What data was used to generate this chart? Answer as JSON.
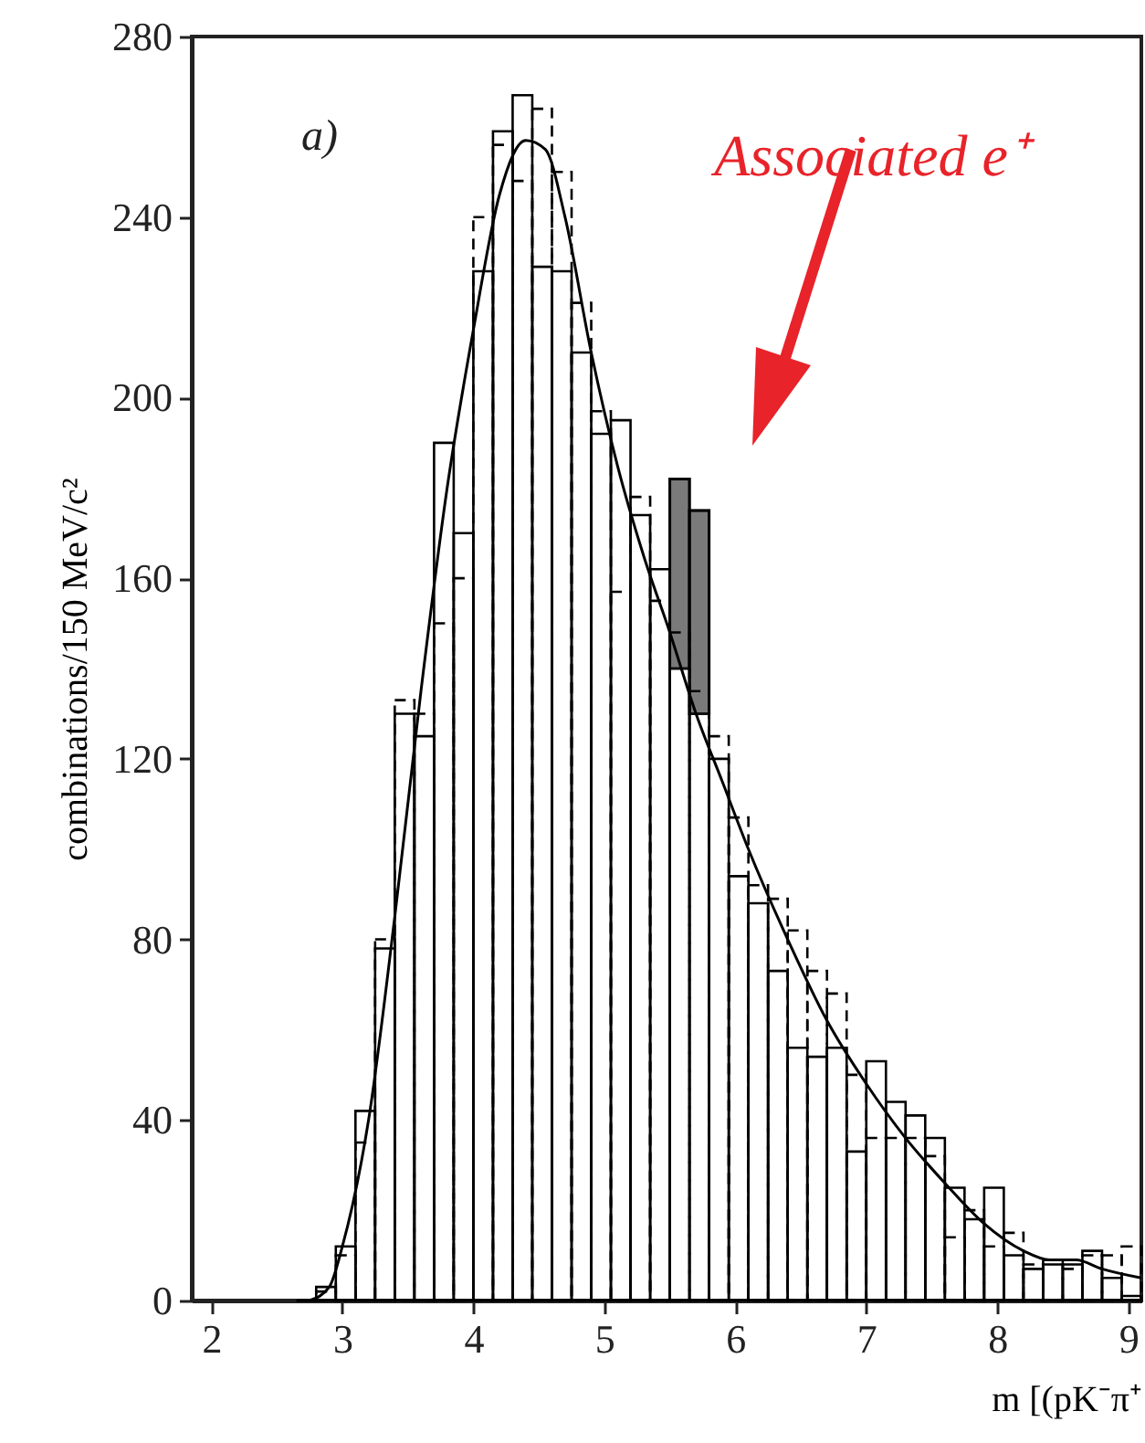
{
  "chart_data": {
    "type": "histogram",
    "xlabel": "m [(pK⁻π⁺",
    "ylabel": "combinations/150 MeV/c²",
    "annotations": [
      "a)",
      "Associated e⁺"
    ],
    "bins": [
      2.65,
      2.8,
      2.95,
      3.1,
      3.25,
      3.4,
      3.55,
      3.7,
      3.85,
      4.0,
      4.15,
      4.3,
      4.45,
      4.6,
      4.75,
      4.9,
      5.05,
      5.2,
      5.35,
      5.5,
      5.65,
      5.8,
      5.95,
      6.1,
      6.25,
      6.4,
      6.55,
      6.7,
      6.85,
      7.0,
      7.15,
      7.3,
      7.45,
      7.6,
      7.75,
      7.9,
      8.05,
      8.2,
      8.35,
      8.5,
      8.65,
      8.8,
      8.95,
      9.1
    ],
    "series": [
      {
        "color": "#000000",
        "line_style": "solid",
        "values": [
          0,
          3,
          12,
          42,
          78,
          130,
          125,
          190,
          170,
          228,
          259,
          267,
          229,
          228,
          210,
          192,
          195,
          174,
          162,
          182,
          175,
          120,
          94,
          88,
          73,
          56,
          54,
          56,
          33,
          53,
          44,
          41,
          36,
          25,
          18,
          25,
          10,
          7,
          8,
          8,
          11,
          5,
          1
        ]
      },
      {
        "color": "#000000",
        "line_style": "dashed",
        "values": [
          0,
          2,
          10,
          35,
          80,
          133,
          130,
          150,
          160,
          240,
          256,
          248,
          264,
          250,
          221,
          197,
          157,
          178,
          155,
          148,
          135,
          125,
          107,
          92,
          89,
          82,
          73,
          68,
          50,
          36,
          36,
          36,
          32,
          14,
          20,
          12,
          15,
          8,
          9,
          7,
          10,
          10,
          12
        ]
      },
      {
        "color": "#7a7a7a",
        "values": [
          null,
          null,
          null,
          null,
          null,
          null,
          null,
          null,
          null,
          null,
          null,
          null,
          null,
          null,
          null,
          null,
          null,
          null,
          null,
          42,
          45,
          null,
          null,
          null,
          null,
          null,
          null,
          null,
          null,
          null,
          null,
          null,
          null,
          null,
          null,
          null,
          null,
          null,
          null,
          null,
          null,
          null,
          null
        ],
        "base": [
          null,
          null,
          null,
          null,
          null,
          null,
          null,
          null,
          null,
          null,
          null,
          null,
          null,
          null,
          null,
          null,
          null,
          null,
          null,
          140,
          130,
          null,
          null,
          null,
          null,
          null,
          null,
          null,
          null,
          null,
          null,
          null,
          null,
          null,
          null,
          null,
          null,
          null,
          null,
          null,
          null,
          null,
          null
        ]
      },
      {
        "type": "line",
        "color": "#000000",
        "line_style": "solid",
        "x": [
          2.75,
          2.9,
          3.0,
          3.2,
          3.4,
          3.6,
          3.8,
          4.0,
          4.2,
          4.4,
          4.55,
          4.7,
          4.9,
          5.1,
          5.3,
          5.5,
          5.7,
          5.9,
          6.1,
          6.4,
          6.7,
          7.0,
          7.3,
          7.6,
          7.9,
          8.2,
          8.4,
          8.6,
          8.8,
          9.1
        ],
        "values": [
          0,
          3,
          12,
          40,
          85,
          135,
          180,
          215,
          245,
          257,
          255,
          240,
          210,
          185,
          165,
          148,
          130,
          115,
          100,
          80,
          62,
          48,
          36,
          26,
          17,
          11,
          9,
          9,
          7,
          5
        ]
      }
    ],
    "xlim": [
      1.85,
      9.1
    ],
    "ylim": [
      0,
      280
    ],
    "xticks": [
      2,
      3,
      4,
      5,
      6,
      7,
      8,
      9
    ],
    "yticks": [
      0,
      40,
      80,
      120,
      160,
      200,
      240,
      280
    ],
    "grid": false
  }
}
